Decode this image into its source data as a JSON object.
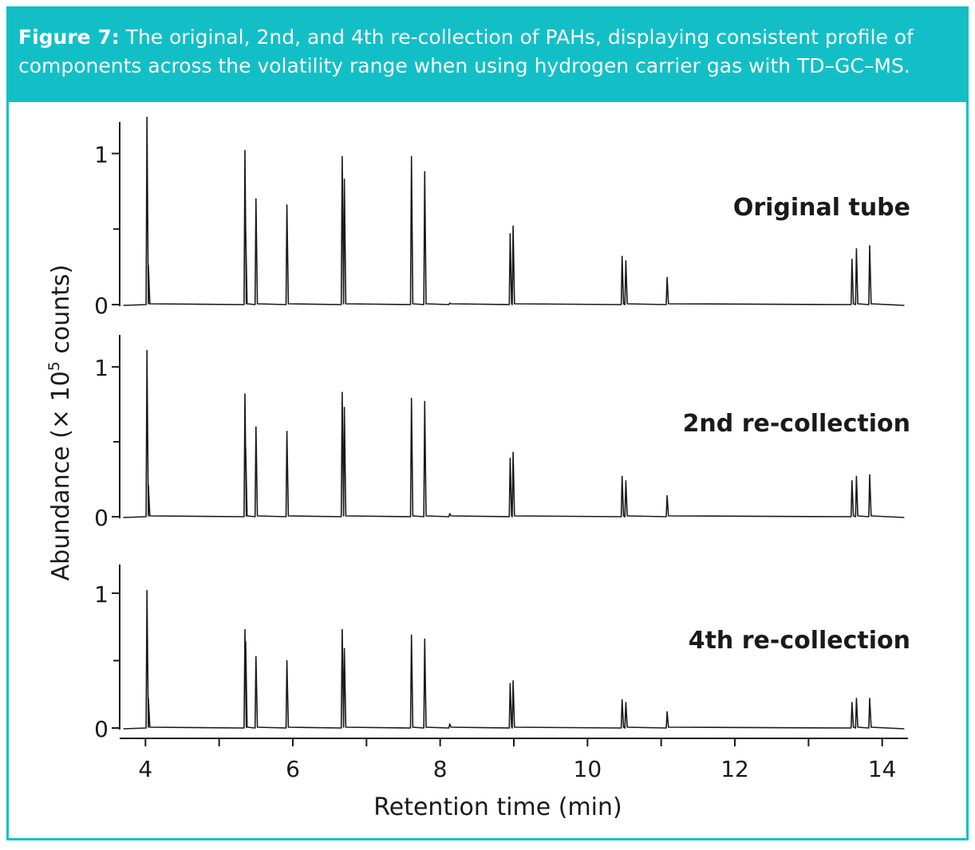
{
  "figure": {
    "label": "Figure 7:",
    "caption": "The original, 2nd, and 4th re-collection of PAHs, displaying consistent profile of components across the volatility range when using hydrogen carrier gas with TD–GC–MS."
  },
  "colors": {
    "accent": "#13bfc6",
    "trace": "#1a1a1a"
  },
  "chart_data": {
    "type": "line",
    "title": "",
    "xlabel": "Retention time (min)",
    "ylabel": {
      "prefix": "Abundance (× 10",
      "exponent": "5",
      "suffix": " counts)"
    },
    "xlim": [
      3.65,
      14.35
    ],
    "xticks": [
      4,
      6,
      8,
      10,
      12,
      14
    ],
    "yticks": [
      0,
      1
    ],
    "peak_width_min": 0.012,
    "series": [
      {
        "name": "Original tube",
        "ylim": [
          -0.02,
          1.2
        ],
        "peaks": [
          {
            "rt": 4.02,
            "h": 1.24
          },
          {
            "rt": 4.04,
            "h": 0.26
          },
          {
            "rt": 5.35,
            "h": 1.02
          },
          {
            "rt": 5.36,
            "h": 0.5
          },
          {
            "rt": 5.5,
            "h": 0.7
          },
          {
            "rt": 5.92,
            "h": 0.66
          },
          {
            "rt": 6.67,
            "h": 0.98
          },
          {
            "rt": 6.7,
            "h": 0.83
          },
          {
            "rt": 7.61,
            "h": 0.98
          },
          {
            "rt": 7.79,
            "h": 0.88
          },
          {
            "rt": 8.13,
            "h": 0.01
          },
          {
            "rt": 8.95,
            "h": 0.47
          },
          {
            "rt": 8.99,
            "h": 0.52
          },
          {
            "rt": 10.47,
            "h": 0.32
          },
          {
            "rt": 10.52,
            "h": 0.29
          },
          {
            "rt": 11.08,
            "h": 0.18
          },
          {
            "rt": 13.59,
            "h": 0.3
          },
          {
            "rt": 13.65,
            "h": 0.37
          },
          {
            "rt": 13.83,
            "h": 0.39
          }
        ]
      },
      {
        "name": "2nd re-collection",
        "ylim": [
          -0.02,
          1.2
        ],
        "peaks": [
          {
            "rt": 4.02,
            "h": 1.11
          },
          {
            "rt": 4.04,
            "h": 0.21
          },
          {
            "rt": 5.35,
            "h": 0.82
          },
          {
            "rt": 5.36,
            "h": 0.46
          },
          {
            "rt": 5.5,
            "h": 0.6
          },
          {
            "rt": 5.92,
            "h": 0.57
          },
          {
            "rt": 6.67,
            "h": 0.83
          },
          {
            "rt": 6.7,
            "h": 0.73
          },
          {
            "rt": 7.61,
            "h": 0.79
          },
          {
            "rt": 7.79,
            "h": 0.77
          },
          {
            "rt": 8.13,
            "h": 0.02
          },
          {
            "rt": 8.95,
            "h": 0.39
          },
          {
            "rt": 8.99,
            "h": 0.43
          },
          {
            "rt": 10.47,
            "h": 0.27
          },
          {
            "rt": 10.52,
            "h": 0.24
          },
          {
            "rt": 11.08,
            "h": 0.14
          },
          {
            "rt": 13.59,
            "h": 0.24
          },
          {
            "rt": 13.65,
            "h": 0.27
          },
          {
            "rt": 13.83,
            "h": 0.28
          }
        ]
      },
      {
        "name": "4th re-collection",
        "ylim": [
          -0.02,
          1.2
        ],
        "peaks": [
          {
            "rt": 4.02,
            "h": 1.02
          },
          {
            "rt": 4.04,
            "h": 0.22
          },
          {
            "rt": 5.35,
            "h": 0.73
          },
          {
            "rt": 5.36,
            "h": 0.64
          },
          {
            "rt": 5.5,
            "h": 0.53
          },
          {
            "rt": 5.92,
            "h": 0.5
          },
          {
            "rt": 6.67,
            "h": 0.73
          },
          {
            "rt": 6.7,
            "h": 0.59
          },
          {
            "rt": 7.61,
            "h": 0.69
          },
          {
            "rt": 7.79,
            "h": 0.66
          },
          {
            "rt": 8.13,
            "h": 0.03
          },
          {
            "rt": 8.95,
            "h": 0.33
          },
          {
            "rt": 8.99,
            "h": 0.35
          },
          {
            "rt": 10.47,
            "h": 0.21
          },
          {
            "rt": 10.52,
            "h": 0.19
          },
          {
            "rt": 11.08,
            "h": 0.12
          },
          {
            "rt": 13.59,
            "h": 0.19
          },
          {
            "rt": 13.65,
            "h": 0.22
          },
          {
            "rt": 13.83,
            "h": 0.22
          }
        ]
      }
    ]
  }
}
